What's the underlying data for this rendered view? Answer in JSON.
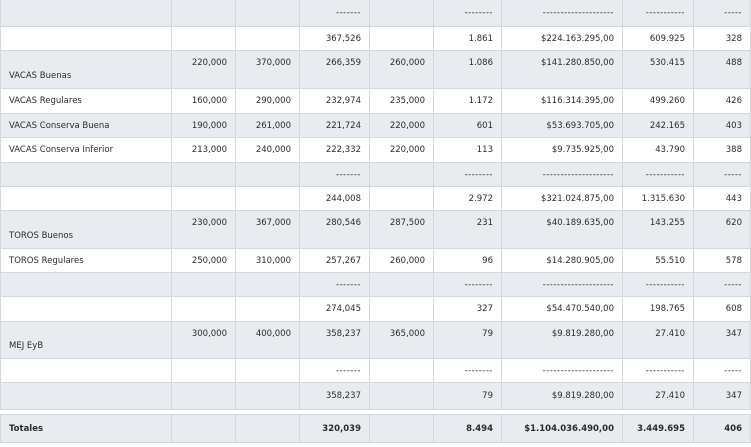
{
  "rows": [
    {
      "kind": "sep",
      "cells": [
        "",
        "",
        "",
        "-------",
        "",
        "--------",
        "--------------------",
        "-----------",
        "-----"
      ]
    },
    {
      "kind": "subtotal",
      "cells": [
        "",
        "",
        "",
        "367,526",
        "",
        "1.861",
        "$224.163.295,00",
        "609.925",
        "328"
      ]
    },
    {
      "kind": "item",
      "cells": [
        "VACAS Buenas",
        "220,000",
        "370,000",
        "266,359",
        "260,000",
        "1.086",
        "$141.280.850,00",
        "530.415",
        "488"
      ]
    },
    {
      "kind": "item",
      "cells": [
        "VACAS Regulares",
        "160,000",
        "290,000",
        "232,974",
        "235,000",
        "1.172",
        "$116.314.395,00",
        "499.260",
        "426"
      ]
    },
    {
      "kind": "item",
      "cells": [
        "VACAS Conserva Buena",
        "190,000",
        "261,000",
        "221,724",
        "220,000",
        "601",
        "$53.693.705,00",
        "242.165",
        "403"
      ]
    },
    {
      "kind": "item",
      "cells": [
        "VACAS Conserva Inferior",
        "213,000",
        "240,000",
        "222,332",
        "220,000",
        "113",
        "$9.735.925,00",
        "43.790",
        "388"
      ]
    },
    {
      "kind": "sep",
      "cells": [
        "",
        "",
        "",
        "-------",
        "",
        "--------",
        "--------------------",
        "-----------",
        "-----"
      ]
    },
    {
      "kind": "subtotal",
      "cells": [
        "",
        "",
        "",
        "244,008",
        "",
        "2.972",
        "$321.024.875,00",
        "1.315.630",
        "443"
      ]
    },
    {
      "kind": "item",
      "cells": [
        "TOROS Buenos",
        "230,000",
        "367,000",
        "280,546",
        "287,500",
        "231",
        "$40.189.635,00",
        "143.255",
        "620"
      ]
    },
    {
      "kind": "item",
      "cells": [
        "TOROS Regulares",
        "250,000",
        "310,000",
        "257,267",
        "260,000",
        "96",
        "$14.280.905,00",
        "55.510",
        "578"
      ]
    },
    {
      "kind": "sep",
      "cells": [
        "",
        "",
        "",
        "-------",
        "",
        "--------",
        "--------------------",
        "-----------",
        "-----"
      ]
    },
    {
      "kind": "subtotal",
      "cells": [
        "",
        "",
        "",
        "274,045",
        "",
        "327",
        "$54.470.540,00",
        "198.765",
        "608"
      ]
    },
    {
      "kind": "item",
      "cells": [
        "MEJ EyB",
        "300,000",
        "400,000",
        "358,237",
        "365,000",
        "79",
        "$9.819.280,00",
        "27.410",
        "347"
      ]
    },
    {
      "kind": "sep",
      "cells": [
        "",
        "",
        "",
        "-------",
        "",
        "--------",
        "--------------------",
        "-----------",
        "-----"
      ]
    },
    {
      "kind": "subtotal",
      "cells": [
        "",
        "",
        "",
        "358,237",
        "",
        "79",
        "$9.819.280,00",
        "27.410",
        "347"
      ]
    }
  ],
  "totals": {
    "label": "Totales",
    "cells": [
      "Totales",
      "",
      "",
      "320,039",
      "",
      "8.494",
      "$1.104.036.490,00",
      "3.449.695",
      "406"
    ]
  }
}
